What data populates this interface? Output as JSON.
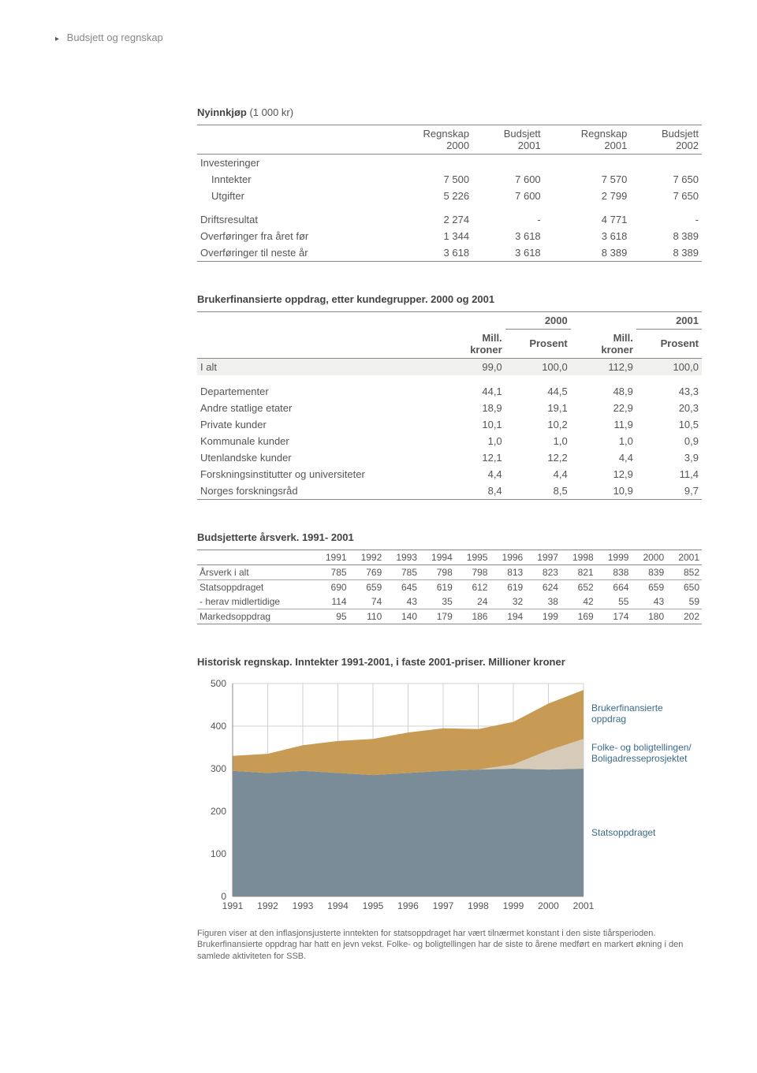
{
  "breadcrumb": "Budsjett og regnskap",
  "table1": {
    "title_strong": "Nyinnkjøp",
    "title_rest": " (1 000 kr)",
    "headers": [
      "",
      "Regnskap\n2000",
      "Budsjett\n2001",
      "Regnskap\n2001",
      "Budsjett\n2002"
    ],
    "sections": [
      {
        "label": "Investeringer",
        "rows": [
          {
            "label": "Inntekter",
            "indent": true,
            "vals": [
              "7 500",
              "7 600",
              "7 570",
              "7 650"
            ]
          },
          {
            "label": "Utgifter",
            "indent": true,
            "vals": [
              "5 226",
              "7 600",
              "2 799",
              "7 650"
            ]
          }
        ]
      },
      {
        "rows": [
          {
            "label": "Driftsresultat",
            "vals": [
              "2 274",
              "-",
              "4 771",
              "-"
            ]
          },
          {
            "label": "Overføringer fra året før",
            "vals": [
              "1 344",
              "3 618",
              "3 618",
              "8 389"
            ]
          },
          {
            "label": "Overføringer til neste år",
            "vals": [
              "3 618",
              "3 618",
              "8 389",
              "8 389"
            ]
          }
        ]
      }
    ]
  },
  "table2": {
    "title": "Brukerfinansierte oppdrag, etter kundegrupper. 2000 og 2001",
    "year1": "2000",
    "year2": "2001",
    "sub": [
      "Mill.\nkroner",
      "Prosent"
    ],
    "first_row": {
      "label": "I alt",
      "vals": [
        "99,0",
        "100,0",
        "112,9",
        "100,0"
      ],
      "alt": true
    },
    "rows": [
      {
        "label": "Departementer",
        "vals": [
          "44,1",
          "44,5",
          "48,9",
          "43,3"
        ]
      },
      {
        "label": "Andre statlige etater",
        "vals": [
          "18,9",
          "19,1",
          "22,9",
          "20,3"
        ]
      },
      {
        "label": "Private kunder",
        "vals": [
          "10,1",
          "10,2",
          "11,9",
          "10,5"
        ]
      },
      {
        "label": "Kommunale kunder",
        "vals": [
          "1,0",
          "1,0",
          "1,0",
          "0,9"
        ]
      },
      {
        "label": "Utenlandske kunder",
        "vals": [
          "12,1",
          "12,2",
          "4,4",
          "3,9"
        ]
      },
      {
        "label": "Forskningsinstitutter og universiteter",
        "vals": [
          "4,4",
          "4,4",
          "12,9",
          "11,4"
        ]
      },
      {
        "label": "Norges forskningsråd",
        "vals": [
          "8,4",
          "8,5",
          "10,9",
          "9,7"
        ]
      }
    ]
  },
  "table3": {
    "title": "Budsjetterte årsverk. 1991- 2001",
    "years": [
      "1991",
      "1992",
      "1993",
      "1994",
      "1995",
      "1996",
      "1997",
      "1998",
      "1999",
      "2000",
      "2001"
    ],
    "rows": [
      {
        "label": "Årsverk i alt",
        "vals": [
          785,
          769,
          785,
          798,
          798,
          813,
          823,
          821,
          838,
          839,
          852
        ],
        "rule": true
      },
      {
        "label": "Statsoppdraget",
        "vals": [
          690,
          659,
          645,
          619,
          612,
          619,
          624,
          652,
          664,
          659,
          650
        ]
      },
      {
        "label": "- herav midlertidige",
        "vals": [
          114,
          74,
          43,
          35,
          24,
          32,
          38,
          42,
          55,
          43,
          59
        ],
        "rule": true
      },
      {
        "label": "Markedsoppdrag",
        "vals": [
          95,
          110,
          140,
          179,
          186,
          194,
          199,
          169,
          174,
          180,
          202
        ]
      }
    ]
  },
  "chart": {
    "title": "Historisk regnskap. Inntekter 1991-2001, i faste 2001-priser. Millioner kroner",
    "years": [
      "1991",
      "1992",
      "1993",
      "1994",
      "1995",
      "1996",
      "1997",
      "1998",
      "1999",
      "2000",
      "2001"
    ],
    "series": {
      "stats": {
        "label": "Statsoppdraget",
        "color": "#7a8c97",
        "values": [
          295,
          290,
          295,
          290,
          285,
          290,
          295,
          298,
          300,
          298,
          300
        ]
      },
      "folke": {
        "label": "Folke- og boligtellingen/\nBoligadresseprosjektet",
        "color": "#d6cbb8",
        "values": [
          0,
          0,
          0,
          0,
          0,
          0,
          0,
          0,
          10,
          45,
          70
        ]
      },
      "bruker": {
        "label": "Brukerfinansierte\noppdrag",
        "color": "#c89b54",
        "values": [
          35,
          45,
          60,
          75,
          85,
          95,
          100,
          95,
          100,
          110,
          115
        ]
      }
    },
    "ylim": [
      0,
      500
    ],
    "ytick_step": 100,
    "background_color": "#ffffff",
    "grid_color": "#d0d0d0",
    "axis_color": "#888888",
    "label_fontsize": 12,
    "caption": "Figuren viser at den inflasjonsjusterte inntekten for statsoppdraget har vært  tilnærmet konstant i den siste tiårsperioden. Brukerfinansierte oppdrag har hatt en jevn vekst. Folke- og boligtellingen har de siste to årene medført en markert økning i den samlede aktiviteten for SSB."
  }
}
